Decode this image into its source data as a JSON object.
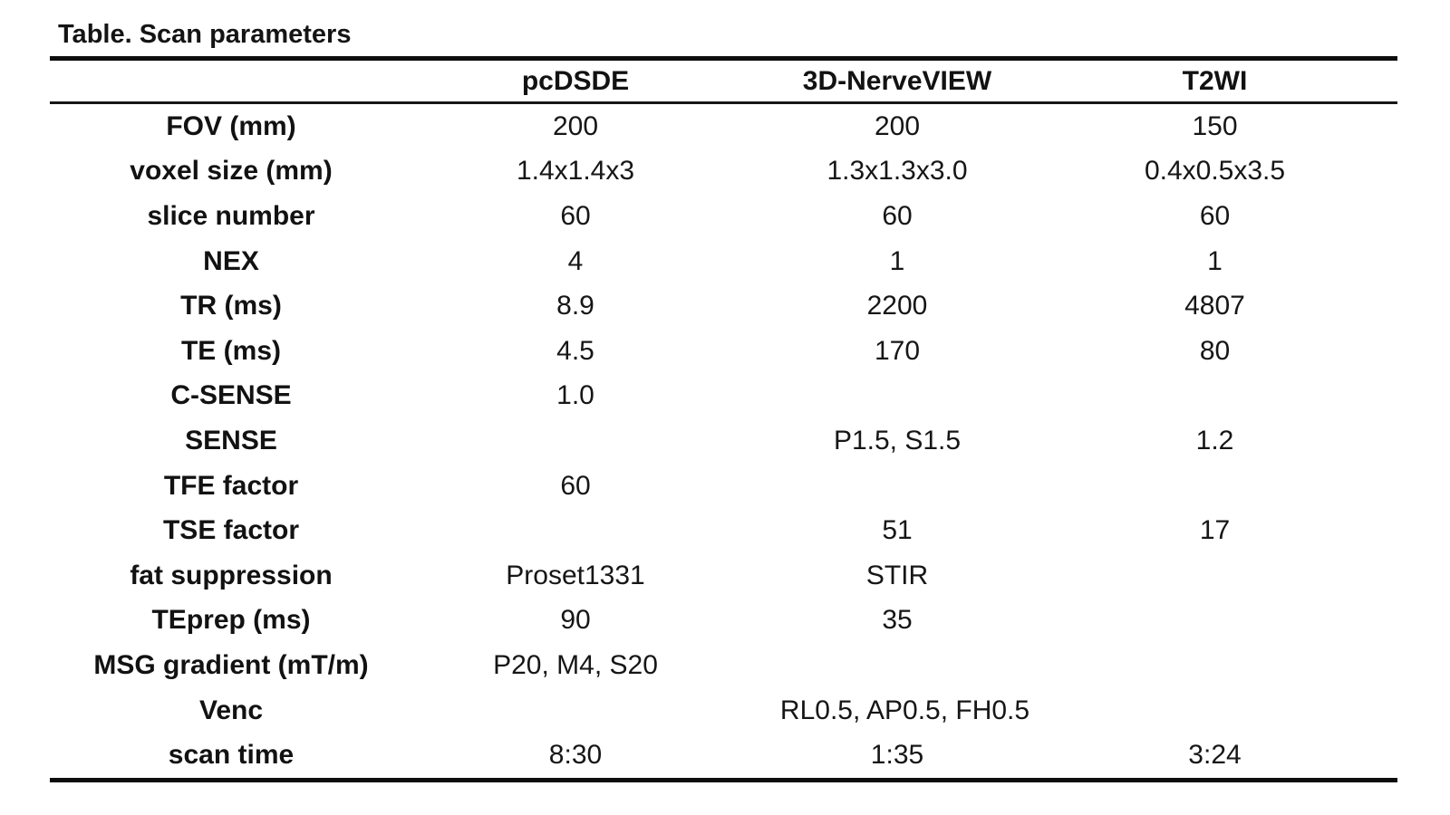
{
  "title": "Table. Scan parameters",
  "colors": {
    "background": "#ffffff",
    "text": "#141414",
    "rule": "#0d0d0d"
  },
  "table": {
    "columns": [
      "",
      "pcDSDE",
      "3D-NerveVIEW",
      "T2WI"
    ],
    "rows": [
      {
        "label": "FOV (mm)",
        "values": [
          "200",
          "200",
          "150"
        ]
      },
      {
        "label": "voxel size (mm)",
        "values": [
          "1.4x1.4x3",
          "1.3x1.3x3.0",
          "0.4x0.5x3.5"
        ]
      },
      {
        "label": "slice number",
        "values": [
          "60",
          "60",
          "60"
        ]
      },
      {
        "label": "NEX",
        "values": [
          "4",
          "1",
          "1"
        ]
      },
      {
        "label": "TR (ms)",
        "values": [
          "8.9",
          "2200",
          "4807"
        ]
      },
      {
        "label": "TE (ms)",
        "values": [
          "4.5",
          "170",
          "80"
        ]
      },
      {
        "label": "C-SENSE",
        "values": [
          "1.0",
          "",
          ""
        ]
      },
      {
        "label": "SENSE",
        "values": [
          "",
          "P1.5, S1.5",
          "1.2"
        ]
      },
      {
        "label": "TFE factor",
        "values": [
          "60",
          "",
          ""
        ]
      },
      {
        "label": "TSE factor",
        "values": [
          "",
          "51",
          "17"
        ]
      },
      {
        "label": "fat suppression",
        "values": [
          "Proset1331",
          "STIR",
          ""
        ]
      },
      {
        "label": "TEprep (ms)",
        "values": [
          "90",
          "35",
          ""
        ]
      },
      {
        "label": "MSG gradient (mT/m)",
        "values": [
          "P20, M4, S20",
          "",
          ""
        ]
      },
      {
        "label": "Venc",
        "span_value": "RL0.5, AP0.5, FH0.5"
      },
      {
        "label": "scan time",
        "values": [
          "8:30",
          "1:35",
          "3:24"
        ]
      }
    ]
  }
}
